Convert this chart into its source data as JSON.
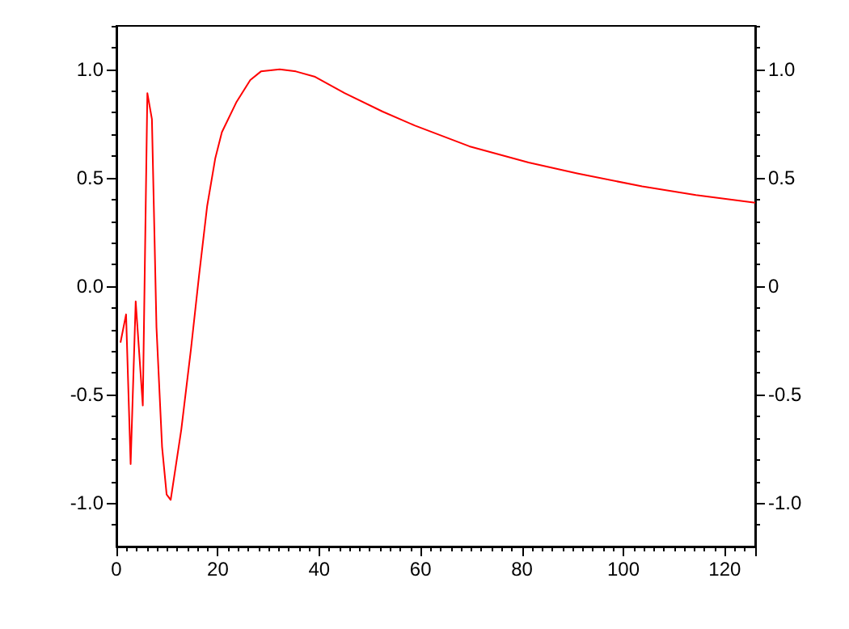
{
  "chart_data": {
    "type": "line",
    "x": [
      0.8,
      1.9,
      2.8,
      3.8,
      5.2,
      6.1,
      7.0,
      7.9,
      9.0,
      9.9,
      10.7,
      12.8,
      14.7,
      16.3,
      17.9,
      19.5,
      20.8,
      23.7,
      26.4,
      28.5,
      32.2,
      35.4,
      39.2,
      45.0,
      52.5,
      58.9,
      69.6,
      81.3,
      90.9,
      103.7,
      114.3,
      126
    ],
    "series": [
      {
        "color": "#ff0000",
        "values": [
          -0.26,
          -0.13,
          -0.82,
          -0.07,
          -0.55,
          0.89,
          0.77,
          -0.19,
          -0.74,
          -0.96,
          -0.985,
          -0.66,
          -0.29,
          0.05,
          0.37,
          0.59,
          0.71,
          0.85,
          0.95,
          0.99,
          1.0,
          0.99,
          0.965,
          0.89,
          0.805,
          0.74,
          0.645,
          0.57,
          0.52,
          0.46,
          0.42,
          0.385
        ]
      }
    ],
    "xlim": [
      0,
      126
    ],
    "xticks": [
      0,
      20,
      40,
      60,
      80,
      100,
      120
    ],
    "ylim": [
      -1.2,
      1.2
    ],
    "yticks": [
      {
        "value": -1,
        "label": "-1.0"
      },
      {
        "value": -0.5,
        "label": "-0.5"
      },
      {
        "value": 0,
        "label": "0.0"
      },
      {
        "value": 0.5,
        "label": "0.5"
      },
      {
        "value": 1,
        "label": "1.0"
      }
    ],
    "y2lim": [
      -1.2,
      1.2
    ],
    "y2ticks": [
      {
        "value": -1,
        "label": "-1.0"
      },
      {
        "value": -0.5,
        "label": "-0.5"
      },
      {
        "value": 0,
        "label": "0"
      },
      {
        "value": 0.5,
        "label": "0.5"
      },
      {
        "value": 1,
        "label": "1.0"
      }
    ],
    "grid": false,
    "marker": "none",
    "line_style": "solid"
  }
}
